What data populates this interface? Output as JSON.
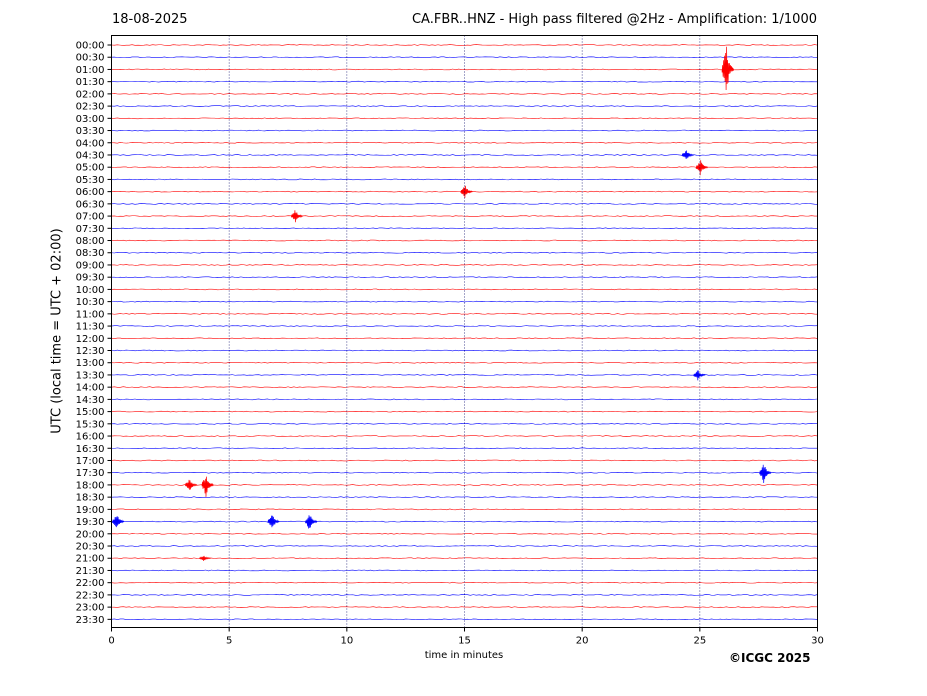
{
  "header": {
    "date": "18-08-2025",
    "title": "CA.FBR..HNZ - High pass filtered @2Hz - Amplification: 1/1000"
  },
  "footer": {
    "copyright": "©ICGC 2025"
  },
  "chart_data": {
    "type": "line",
    "title": "CA.FBR..HNZ - High pass filtered @2Hz - Amplification: 1/1000",
    "xlabel": "time in minutes",
    "ylabel": "UTC (local time = UTC + 02:00)",
    "xlim": [
      0,
      30
    ],
    "x_ticks": [
      0,
      5,
      10,
      15,
      20,
      25,
      30
    ],
    "grid": "vertical dotted lines at every 5 minutes",
    "series_colors": [
      "#ff0000",
      "#0000ff"
    ],
    "rows": [
      "00:00",
      "00:30",
      "01:00",
      "01:30",
      "02:00",
      "02:30",
      "03:00",
      "03:30",
      "04:00",
      "04:30",
      "05:00",
      "05:30",
      "06:00",
      "06:30",
      "07:00",
      "07:30",
      "08:00",
      "08:30",
      "09:00",
      "09:30",
      "10:00",
      "10:30",
      "11:00",
      "11:30",
      "12:00",
      "12:30",
      "13:00",
      "13:30",
      "14:00",
      "14:30",
      "15:00",
      "15:30",
      "16:00",
      "16:30",
      "17:00",
      "17:30",
      "18:00",
      "18:30",
      "19:00",
      "19:30",
      "20:00",
      "20:30",
      "21:00",
      "21:30",
      "22:00",
      "22:30",
      "23:00",
      "23:30"
    ],
    "events": [
      {
        "row": "01:00",
        "minute": 26.2,
        "amplitude": 1.0
      },
      {
        "row": "04:30",
        "minute": 24.5,
        "amplitude": 0.2
      },
      {
        "row": "05:00",
        "minute": 25.1,
        "amplitude": 0.3
      },
      {
        "row": "06:00",
        "minute": 15.1,
        "amplitude": 0.25
      },
      {
        "row": "07:00",
        "minute": 7.9,
        "amplitude": 0.25
      },
      {
        "row": "13:30",
        "minute": 25.0,
        "amplitude": 0.2
      },
      {
        "row": "17:30",
        "minute": 27.8,
        "amplitude": 0.4
      },
      {
        "row": "18:00",
        "minute": 4.1,
        "amplitude": 0.45
      },
      {
        "row": "18:00",
        "minute": 3.4,
        "amplitude": 0.25
      },
      {
        "row": "19:30",
        "minute": 0.3,
        "amplitude": 0.3
      },
      {
        "row": "19:30",
        "minute": 6.9,
        "amplitude": 0.3
      },
      {
        "row": "19:30",
        "minute": 8.5,
        "amplitude": 0.35
      },
      {
        "row": "21:00",
        "minute": 4.0,
        "amplitude": 0.1
      }
    ]
  }
}
